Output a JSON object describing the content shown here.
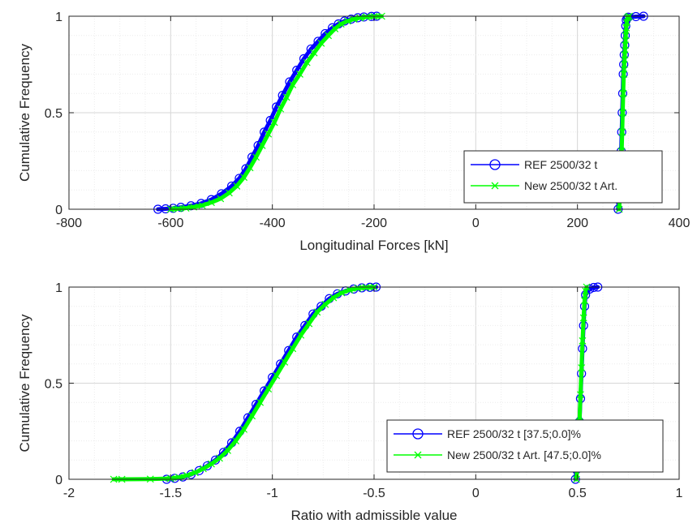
{
  "chart_data": [
    {
      "type": "line",
      "subtype": "cumulative-distribution",
      "xlabel": "Longitudinal Forces [kN]",
      "ylabel": "Cumulative Frequency",
      "xlim": [
        -800,
        400
      ],
      "ylim": [
        0,
        1
      ],
      "xticks": [
        -800,
        -600,
        -400,
        -200,
        0,
        200,
        400
      ],
      "yticks": [
        0,
        0.5,
        1
      ],
      "grid": true,
      "minor_grid": true,
      "legend_position": "bottom-right",
      "series": [
        {
          "name": "REF 2500/32 t",
          "color": "#0000ff",
          "marker": "circle",
          "groups": [
            {
              "x": [
                -625,
                -610,
                -595,
                -580,
                -560,
                -540,
                -520,
                -500,
                -480,
                -465,
                -452,
                -440,
                -428,
                -416,
                -404,
                -392,
                -380,
                -366,
                -352,
                -338,
                -324,
                -310,
                -296,
                -282,
                -270,
                -258,
                -245,
                -232,
                -220,
                -205,
                -195
              ],
              "y": [
                0,
                0.002,
                0.005,
                0.01,
                0.018,
                0.03,
                0.05,
                0.08,
                0.12,
                0.16,
                0.21,
                0.27,
                0.33,
                0.4,
                0.46,
                0.53,
                0.59,
                0.66,
                0.72,
                0.78,
                0.83,
                0.87,
                0.91,
                0.94,
                0.96,
                0.975,
                0.985,
                0.992,
                0.996,
                0.999,
                1.0
              ]
            },
            {
              "x": [
                280,
                281,
                282,
                283,
                284,
                285,
                286,
                287,
                288,
                289,
                290,
                291,
                292,
                293,
                294,
                295,
                296,
                298,
                300,
                315,
                330
              ],
              "y": [
                0,
                0.05,
                0.1,
                0.15,
                0.2,
                0.25,
                0.3,
                0.4,
                0.5,
                0.6,
                0.7,
                0.75,
                0.8,
                0.85,
                0.9,
                0.95,
                0.98,
                0.99,
                0.995,
                0.998,
                1.0
              ]
            }
          ]
        },
        {
          "name": "New 2500/32 t Art.",
          "color": "#00ff00",
          "marker": "x",
          "groups": [
            {
              "x": [
                -600,
                -585,
                -570,
                -555,
                -538,
                -520,
                -502,
                -485,
                -470,
                -456,
                -444,
                -432,
                -420,
                -408,
                -396,
                -384,
                -372,
                -360,
                -346,
                -332,
                -318,
                -304,
                -290,
                -277,
                -265,
                -252,
                -240,
                -228,
                -215,
                -200,
                -185
              ],
              "y": [
                0,
                0.003,
                0.006,
                0.012,
                0.02,
                0.035,
                0.055,
                0.085,
                0.12,
                0.165,
                0.215,
                0.27,
                0.33,
                0.39,
                0.45,
                0.52,
                0.58,
                0.645,
                0.7,
                0.76,
                0.81,
                0.86,
                0.9,
                0.935,
                0.96,
                0.975,
                0.985,
                0.992,
                0.996,
                0.999,
                1.0
              ]
            },
            {
              "x": [
                282,
                283,
                284,
                285,
                286,
                287,
                288,
                289,
                290,
                291,
                292,
                293,
                294,
                295,
                296,
                297,
                298,
                300,
                302
              ],
              "y": [
                0,
                0.05,
                0.1,
                0.15,
                0.2,
                0.3,
                0.4,
                0.5,
                0.6,
                0.7,
                0.75,
                0.8,
                0.85,
                0.9,
                0.94,
                0.97,
                0.99,
                0.996,
                1.0
              ]
            }
          ]
        }
      ]
    },
    {
      "type": "line",
      "subtype": "cumulative-distribution",
      "xlabel": "Ratio with admissible value",
      "ylabel": "Cumulative Frequency",
      "xlim": [
        -2,
        1
      ],
      "ylim": [
        0,
        1
      ],
      "xticks": [
        -2,
        -1.5,
        -1,
        -0.5,
        0,
        0.5,
        1
      ],
      "yticks": [
        0,
        0.5,
        1
      ],
      "grid": true,
      "minor_grid": true,
      "legend_position": "bottom-right",
      "series": [
        {
          "name": "REF 2500/32 t [37.5;0.0]%",
          "color": "#0000ff",
          "marker": "circle",
          "groups": [
            {
              "x": [
                -1.52,
                -1.48,
                -1.44,
                -1.4,
                -1.36,
                -1.32,
                -1.28,
                -1.24,
                -1.2,
                -1.16,
                -1.12,
                -1.08,
                -1.04,
                -1.0,
                -0.96,
                -0.92,
                -0.88,
                -0.84,
                -0.8,
                -0.76,
                -0.72,
                -0.68,
                -0.64,
                -0.6,
                -0.56,
                -0.52,
                -0.49
              ],
              "y": [
                0,
                0.005,
                0.012,
                0.025,
                0.045,
                0.07,
                0.1,
                0.14,
                0.19,
                0.25,
                0.32,
                0.39,
                0.46,
                0.53,
                0.6,
                0.67,
                0.74,
                0.8,
                0.86,
                0.9,
                0.94,
                0.965,
                0.98,
                0.99,
                0.996,
                0.999,
                1.0
              ]
            },
            {
              "x": [
                0.49,
                0.495,
                0.5,
                0.505,
                0.51,
                0.515,
                0.52,
                0.525,
                0.53,
                0.535,
                0.54,
                0.56,
                0.58,
                0.6
              ],
              "y": [
                0,
                0.05,
                0.12,
                0.2,
                0.3,
                0.42,
                0.55,
                0.68,
                0.8,
                0.9,
                0.96,
                0.99,
                0.998,
                1.0
              ]
            }
          ]
        },
        {
          "name": "New 2500/32 t Art. [47.5;0.0]%",
          "color": "#00ff00",
          "marker": "x",
          "groups": [
            {
              "x": [
                -1.78,
                -1.74,
                -1.6,
                -1.5,
                -1.46,
                -1.42,
                -1.38,
                -1.34,
                -1.3,
                -1.26,
                -1.22,
                -1.18,
                -1.14,
                -1.1,
                -1.06,
                -1.02,
                -0.98,
                -0.94,
                -0.9,
                -0.86,
                -0.82,
                -0.78,
                -0.74,
                -0.7,
                -0.66,
                -0.62,
                -0.58,
                -0.54,
                -0.5
              ],
              "y": [
                0,
                0.0,
                0.001,
                0.004,
                0.01,
                0.02,
                0.035,
                0.055,
                0.08,
                0.11,
                0.15,
                0.2,
                0.26,
                0.33,
                0.4,
                0.47,
                0.54,
                0.61,
                0.68,
                0.75,
                0.81,
                0.87,
                0.91,
                0.945,
                0.97,
                0.985,
                0.994,
                0.998,
                1.0
              ]
            },
            {
              "x": [
                0.495,
                0.5,
                0.505,
                0.51,
                0.515,
                0.52,
                0.525,
                0.53,
                0.535,
                0.54,
                0.545
              ],
              "y": [
                0,
                0.08,
                0.18,
                0.3,
                0.44,
                0.58,
                0.72,
                0.84,
                0.93,
                0.98,
                1.0
              ]
            }
          ]
        }
      ]
    }
  ]
}
